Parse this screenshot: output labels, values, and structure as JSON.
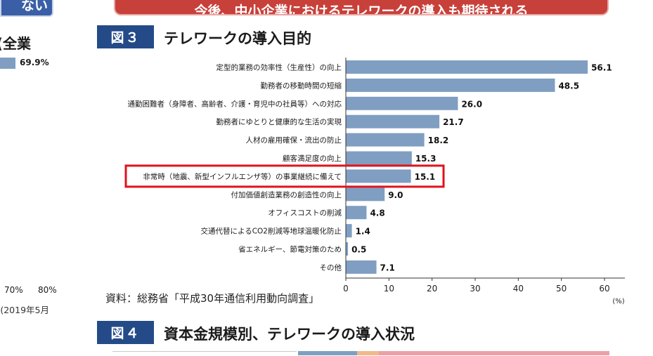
{
  "top_banner": {
    "text": "今後、中小企業におけるテレワークの導入も期待される"
  },
  "left_panel": {
    "banner_text": "ない",
    "heading": "全業)",
    "bar_value_label": "69.9%",
    "axis_ticks": [
      "70%",
      "80%"
    ],
    "date_note": "2019年5月)"
  },
  "figure3": {
    "badge": "図３",
    "title": "テレワークの導入目的",
    "source": "資料：総務省「平成30年通信利用動向調査」"
  },
  "figure4": {
    "badge": "図４",
    "title": "資本金規模別、テレワークの導入状況"
  },
  "colors": {
    "bar": "#7f9ec2",
    "badge": "#244b88",
    "highlight": "#e0121b",
    "banner_red": "#c8403a",
    "banner_blue": "#3a5fa6"
  },
  "chart_data": {
    "type": "bar",
    "orientation": "horizontal",
    "title": "テレワークの導入目的",
    "categories": [
      "定型的業務の効率性（生産性）の向上",
      "勤務者の移動時間の短縮",
      "通勤困難者（身障者、高齢者、介護・育児中の社員等）への対応",
      "勤務者にゆとりと健康的な生活の実現",
      "人材の雇用確保・流出の防止",
      "顧客満足度の向上",
      "非常時（地震、新型インフルエンザ等）の事業継続に備えて",
      "付加価値創造業務の創造性の向上",
      "オフィスコストの削減",
      "交通代替によるCO2削減等地球温暖化防止",
      "省エネルギー、節電対策のため",
      "その他"
    ],
    "values": [
      56.1,
      48.5,
      26.0,
      21.7,
      18.2,
      15.3,
      15.1,
      9.0,
      4.8,
      1.4,
      0.5,
      7.1
    ],
    "value_labels": [
      "56.1",
      "48.5",
      "26.0",
      "21.7",
      "18.2",
      "15.3",
      "15.1",
      "9.0",
      "4.8",
      "1.4",
      "0.5",
      "7.1"
    ],
    "highlight_index": 6,
    "xlim": [
      0,
      60
    ],
    "xticks": [
      "0",
      "10",
      "20",
      "30",
      "40",
      "50",
      "60"
    ],
    "xlabel": "(%)",
    "ylabel": "",
    "grid": false
  },
  "figure4_strip": [
    {
      "color": "#7f9ec2",
      "share": 0.19
    },
    {
      "color": "#f2b98a",
      "share": 0.07
    },
    {
      "color": "#ee9fa6",
      "share": 0.74
    }
  ]
}
